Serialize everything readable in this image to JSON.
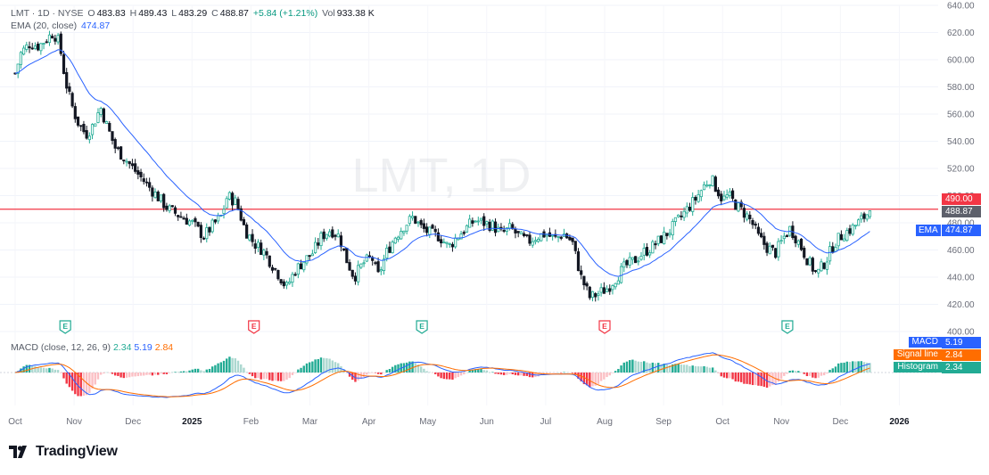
{
  "header": {
    "symbol": "LMT · 1D · NYSE",
    "open_label": "O",
    "open": "483.83",
    "high_label": "H",
    "high": "489.43",
    "low_label": "L",
    "low": "483.29",
    "close_label": "C",
    "close": "488.87",
    "change": "+5.84 (+1.21%)",
    "vol_label": "Vol",
    "vol": "933.38 K",
    "ema_label": "EMA (20, close)",
    "ema_value": "474.87"
  },
  "watermark": "LMT, 1D",
  "macd_header": {
    "label": "MACD (close, 12, 26, 9)",
    "histogram": "2.34",
    "macd": "5.19",
    "signal": "2.84"
  },
  "price_tags": {
    "line_price": "490.00",
    "last_price": "488.87",
    "ema_label": "EMA",
    "ema_value": "474.87"
  },
  "macd_tags": [
    {
      "label": "MACD",
      "value": "5.19",
      "color": "#2962ff"
    },
    {
      "label": "Signal line",
      "value": "2.84",
      "color": "#ff6d00"
    },
    {
      "label": "Histogram",
      "value": "2.34",
      "color": "#22ab94"
    }
  ],
  "brand": "TradingView",
  "chart_data": {
    "type": "candlestick",
    "symbol": "LMT",
    "timeframe": "1D",
    "y_axis_ticks": [
      640,
      620,
      600,
      580,
      560,
      540,
      520,
      500,
      480,
      460,
      440,
      420,
      400
    ],
    "ylim": [
      400,
      640
    ],
    "x_axis_labels": [
      "Oct",
      "Nov",
      "Dec",
      "2025",
      "Feb",
      "Mar",
      "Apr",
      "May",
      "Jun",
      "Jul",
      "Aug",
      "Sep",
      "Oct",
      "Nov",
      "Dec",
      "2026"
    ],
    "horizontal_line": 490.0,
    "earnings_markers": [
      {
        "label": "E",
        "month_index": 0.85,
        "color": "#22ab94"
      },
      {
        "label": "E",
        "month_index": 4.05,
        "color": "#f23645"
      },
      {
        "label": "E",
        "month_index": 6.9,
        "color": "#22ab94"
      },
      {
        "label": "E",
        "month_index": 10.0,
        "color": "#f23645"
      },
      {
        "label": "E",
        "month_index": 13.1,
        "color": "#22ab94"
      }
    ],
    "close_path": [
      [
        0.0,
        590
      ],
      [
        0.1,
        605
      ],
      [
        0.25,
        612
      ],
      [
        0.4,
        610
      ],
      [
        0.55,
        616
      ],
      [
        0.65,
        620
      ],
      [
        0.75,
        612
      ],
      [
        0.85,
        585
      ],
      [
        0.95,
        568
      ],
      [
        1.05,
        555
      ],
      [
        1.2,
        545
      ],
      [
        1.3,
        550
      ],
      [
        1.45,
        565
      ],
      [
        1.55,
        552
      ],
      [
        1.7,
        535
      ],
      [
        1.85,
        528
      ],
      [
        2.0,
        520
      ],
      [
        2.2,
        510
      ],
      [
        2.4,
        500
      ],
      [
        2.6,
        490
      ],
      [
        2.8,
        485
      ],
      [
        3.0,
        480
      ],
      [
        3.2,
        470
      ],
      [
        3.35,
        478
      ],
      [
        3.5,
        485
      ],
      [
        3.6,
        500
      ],
      [
        3.75,
        495
      ],
      [
        3.9,
        475
      ],
      [
        4.05,
        465
      ],
      [
        4.2,
        460
      ],
      [
        4.35,
        450
      ],
      [
        4.5,
        440
      ],
      [
        4.6,
        432
      ],
      [
        4.75,
        445
      ],
      [
        4.9,
        452
      ],
      [
        5.05,
        458
      ],
      [
        5.2,
        470
      ],
      [
        5.35,
        475
      ],
      [
        5.5,
        470
      ],
      [
        5.6,
        455
      ],
      [
        5.75,
        440
      ],
      [
        5.9,
        450
      ],
      [
        6.05,
        455
      ],
      [
        6.15,
        440
      ],
      [
        6.3,
        458
      ],
      [
        6.45,
        470
      ],
      [
        6.6,
        478
      ],
      [
        6.75,
        484
      ],
      [
        6.9,
        476
      ],
      [
        7.05,
        472
      ],
      [
        7.2,
        470
      ],
      [
        7.35,
        462
      ],
      [
        7.5,
        470
      ],
      [
        7.65,
        476
      ],
      [
        7.8,
        482
      ],
      [
        7.95,
        480
      ],
      [
        8.1,
        478
      ],
      [
        8.25,
        472
      ],
      [
        8.4,
        476
      ],
      [
        8.55,
        470
      ],
      [
        8.7,
        466
      ],
      [
        8.85,
        470
      ],
      [
        9.0,
        472
      ],
      [
        9.15,
        468
      ],
      [
        9.3,
        472
      ],
      [
        9.45,
        466
      ],
      [
        9.6,
        440
      ],
      [
        9.75,
        425
      ],
      [
        9.9,
        428
      ],
      [
        10.05,
        432
      ],
      [
        10.2,
        440
      ],
      [
        10.35,
        448
      ],
      [
        10.5,
        452
      ],
      [
        10.65,
        458
      ],
      [
        10.8,
        462
      ],
      [
        10.95,
        468
      ],
      [
        11.1,
        474
      ],
      [
        11.25,
        482
      ],
      [
        11.4,
        490
      ],
      [
        11.55,
        498
      ],
      [
        11.7,
        508
      ],
      [
        11.8,
        513
      ],
      [
        11.9,
        505
      ],
      [
        12.0,
        497
      ],
      [
        12.1,
        500
      ],
      [
        12.25,
        492
      ],
      [
        12.4,
        486
      ],
      [
        12.5,
        480
      ],
      [
        12.6,
        470
      ],
      [
        12.75,
        462
      ],
      [
        12.9,
        458
      ],
      [
        13.05,
        470
      ],
      [
        13.15,
        476
      ],
      [
        13.3,
        465
      ],
      [
        13.45,
        452
      ],
      [
        13.6,
        442
      ],
      [
        13.75,
        452
      ],
      [
        13.9,
        465
      ],
      [
        14.05,
        472
      ],
      [
        14.2,
        476
      ],
      [
        14.35,
        482
      ],
      [
        14.5,
        488.87
      ]
    ],
    "ema": {
      "name": "EMA",
      "period": 20,
      "last": 474.87
    },
    "macd_params": [
      12,
      26,
      9
    ]
  }
}
